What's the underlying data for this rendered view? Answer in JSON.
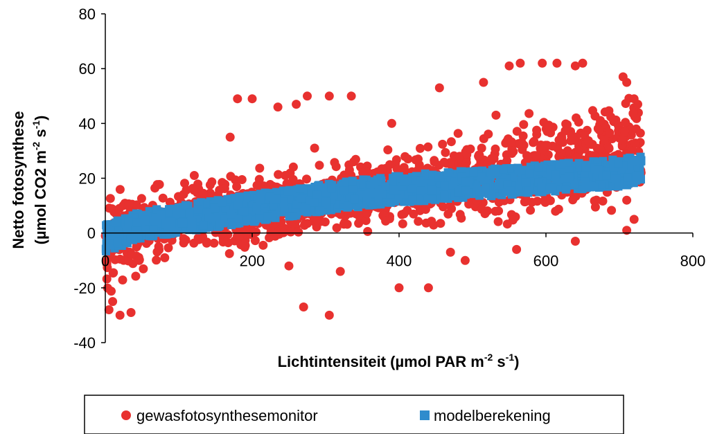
{
  "chart_data": {
    "type": "scatter",
    "title": "",
    "xlabel": "Lichtintensiteit (µmol PAR m-2 s-1)",
    "xlabel_parts": {
      "main": "Lichtintensiteit (µmol PAR m",
      "sup1": "-2",
      "mid": " s",
      "sup2": "-1",
      "end": ")"
    },
    "ylabel_line1": "Netto fotosynthese",
    "ylabel_line2": "(µmol CO2 m-2 s-1)",
    "ylabel_line2_parts": {
      "main": "(µmol CO2 m",
      "sup1": "-2",
      "mid": " s",
      "sup2": "-1",
      "end": ")"
    },
    "xlim": [
      0,
      800
    ],
    "ylim": [
      -40,
      80
    ],
    "x_ticks": [
      "0",
      "200",
      "400",
      "600",
      "800"
    ],
    "y_ticks": [
      "-40",
      "-20",
      "0",
      "20",
      "40",
      "60",
      "80"
    ],
    "x_tick_values": [
      0,
      200,
      400,
      600,
      800
    ],
    "y_tick_values": [
      -40,
      -20,
      0,
      20,
      40,
      60,
      80
    ],
    "grid": false,
    "legend_position": "bottom",
    "series": [
      {
        "name": "gewasfotosynthesemonitor",
        "marker": "circle",
        "color": "#e8312f",
        "trend": {
          "x": [
            0,
            50,
            100,
            200,
            300,
            400,
            500,
            600,
            700,
            730
          ],
          "y": [
            -5,
            2,
            5,
            8,
            12,
            16,
            20,
            26,
            30,
            30
          ]
        },
        "spread": [
          14,
          14,
          12,
          10,
          10,
          12,
          14,
          16,
          16,
          16
        ],
        "x_range": [
          0,
          730
        ],
        "points": [
          [
            180,
            49
          ],
          [
            200,
            49
          ],
          [
            235,
            46
          ],
          [
            260,
            47
          ],
          [
            275,
            50
          ],
          [
            305,
            50
          ],
          [
            335,
            50
          ],
          [
            285,
            31
          ],
          [
            170,
            35
          ],
          [
            245,
            21
          ],
          [
            240,
            16
          ],
          [
            390,
            40
          ],
          [
            455,
            53
          ],
          [
            515,
            55
          ],
          [
            550,
            61
          ],
          [
            565,
            62
          ],
          [
            595,
            62
          ],
          [
            615,
            62
          ],
          [
            640,
            61
          ],
          [
            650,
            62
          ],
          [
            705,
            57
          ],
          [
            710,
            55
          ],
          [
            720,
            49
          ],
          [
            725,
            47
          ],
          [
            270,
            -27
          ],
          [
            305,
            -30
          ],
          [
            400,
            -20
          ],
          [
            440,
            -20
          ],
          [
            320,
            -14
          ],
          [
            5,
            -28
          ],
          [
            20,
            -30
          ],
          [
            35,
            -29
          ],
          [
            10,
            -25
          ],
          [
            560,
            -6
          ],
          [
            640,
            -3
          ],
          [
            710,
            1
          ],
          [
            720,
            5
          ],
          [
            710,
            12
          ],
          [
            470,
            -7
          ],
          [
            490,
            -10
          ],
          [
            250,
            -12
          ],
          [
            190,
            -4
          ]
        ]
      },
      {
        "name": "modelberekening",
        "marker": "square",
        "color": "#2f8ccd",
        "trend": {
          "x": [
            0,
            50,
            100,
            150,
            200,
            300,
            400,
            500,
            600,
            700,
            730
          ],
          "y": [
            -2,
            3,
            5,
            7,
            9,
            13,
            16,
            18,
            20,
            22,
            23
          ]
        },
        "band": 5,
        "x_range": [
          0,
          730
        ]
      }
    ]
  }
}
